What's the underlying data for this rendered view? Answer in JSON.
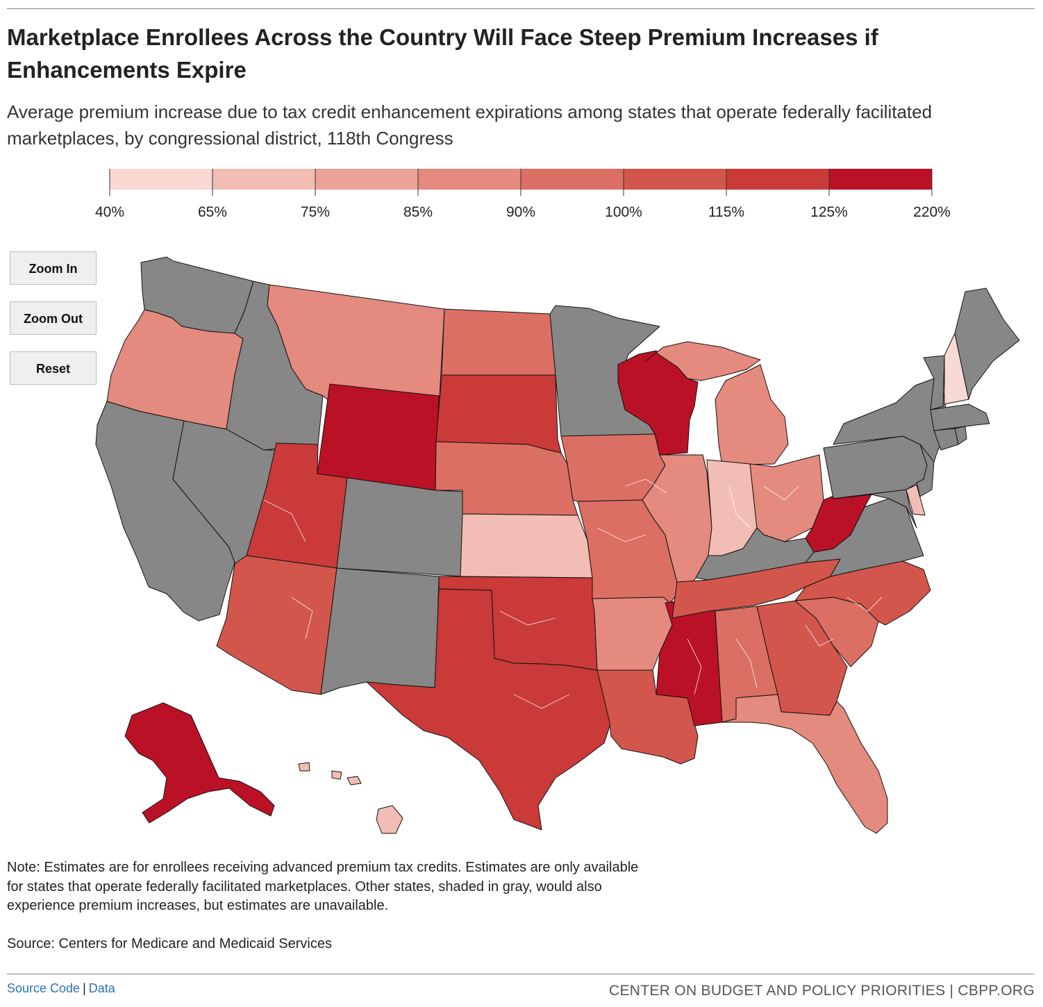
{
  "title": "Marketplace Enrollees Across the Country Will Face Steep Premium Increases if Enhancements Expire",
  "subtitle": "Average premium increase due to tax credit enhancement expirations among states that operate federally facilitated marketplaces, by congressional district, 118th Congress",
  "legend": {
    "ticks": [
      "40%",
      "65%",
      "75%",
      "85%",
      "90%",
      "100%",
      "115%",
      "125%",
      "220%"
    ],
    "colors": [
      "#f8d9d3",
      "#f2bdb4",
      "#eba398",
      "#e48a7e",
      "#dc6f63",
      "#d3564c",
      "#c93a39",
      "#bb1126"
    ]
  },
  "no_data_color": "#878787",
  "buttons": {
    "zoom_in": "Zoom In",
    "zoom_out": "Zoom Out",
    "reset": "Reset"
  },
  "note": "Note: Estimates are for enrollees receiving advanced premium tax credits. Estimates are only available for states that operate federally facilitated marketplaces. Other states, shaded in gray, would also experience premium increases, but estimates are unavailable.",
  "source": "Source: Centers for Medicare and Medicaid Services",
  "footer": {
    "source_code": "Source Code",
    "separator": "|",
    "data_link": "Data",
    "org": "CENTER ON BUDGET AND POLICY PRIORITIES | CBPP.ORG"
  },
  "map": {
    "states": [
      {
        "name": "WA",
        "cls": "na"
      },
      {
        "name": "OR",
        "cls": 3
      },
      {
        "name": "CA",
        "cls": "na"
      },
      {
        "name": "ID",
        "cls": "na"
      },
      {
        "name": "NV",
        "cls": "na"
      },
      {
        "name": "MT",
        "cls": 3
      },
      {
        "name": "WY",
        "cls": 7
      },
      {
        "name": "UT",
        "cls": 6
      },
      {
        "name": "AZ",
        "cls": 5
      },
      {
        "name": "CO",
        "cls": "na"
      },
      {
        "name": "NM",
        "cls": "na"
      },
      {
        "name": "ND",
        "cls": 4
      },
      {
        "name": "SD",
        "cls": 6
      },
      {
        "name": "NE",
        "cls": 4
      },
      {
        "name": "KS",
        "cls": 1
      },
      {
        "name": "OK",
        "cls": 6
      },
      {
        "name": "TX",
        "cls": 6
      },
      {
        "name": "MN",
        "cls": "na"
      },
      {
        "name": "IA",
        "cls": 4
      },
      {
        "name": "MO",
        "cls": 4
      },
      {
        "name": "AR",
        "cls": 3
      },
      {
        "name": "LA",
        "cls": 5
      },
      {
        "name": "WI",
        "cls": 7
      },
      {
        "name": "IL",
        "cls": "na"
      },
      {
        "name": "IL-FF",
        "cls": 3
      },
      {
        "name": "MS",
        "cls": 7
      },
      {
        "name": "MI",
        "cls": 3
      },
      {
        "name": "IN",
        "cls": 1
      },
      {
        "name": "OH",
        "cls": 3
      },
      {
        "name": "KY",
        "cls": "na"
      },
      {
        "name": "TN",
        "cls": 5
      },
      {
        "name": "AL",
        "cls": 4
      },
      {
        "name": "GA",
        "cls": 5
      },
      {
        "name": "FL",
        "cls": 3
      },
      {
        "name": "SC",
        "cls": 4
      },
      {
        "name": "NC",
        "cls": 5
      },
      {
        "name": "VA",
        "cls": "na"
      },
      {
        "name": "WV",
        "cls": 7
      },
      {
        "name": "PA",
        "cls": "na"
      },
      {
        "name": "NY",
        "cls": "na"
      },
      {
        "name": "VT",
        "cls": "na"
      },
      {
        "name": "NH",
        "cls": 0
      },
      {
        "name": "ME",
        "cls": "na"
      },
      {
        "name": "MA",
        "cls": "na"
      },
      {
        "name": "NJ",
        "cls": "na"
      },
      {
        "name": "MD",
        "cls": "na"
      },
      {
        "name": "DE",
        "cls": 1
      },
      {
        "name": "AK",
        "cls": 7
      },
      {
        "name": "HI",
        "cls": 1
      }
    ]
  }
}
